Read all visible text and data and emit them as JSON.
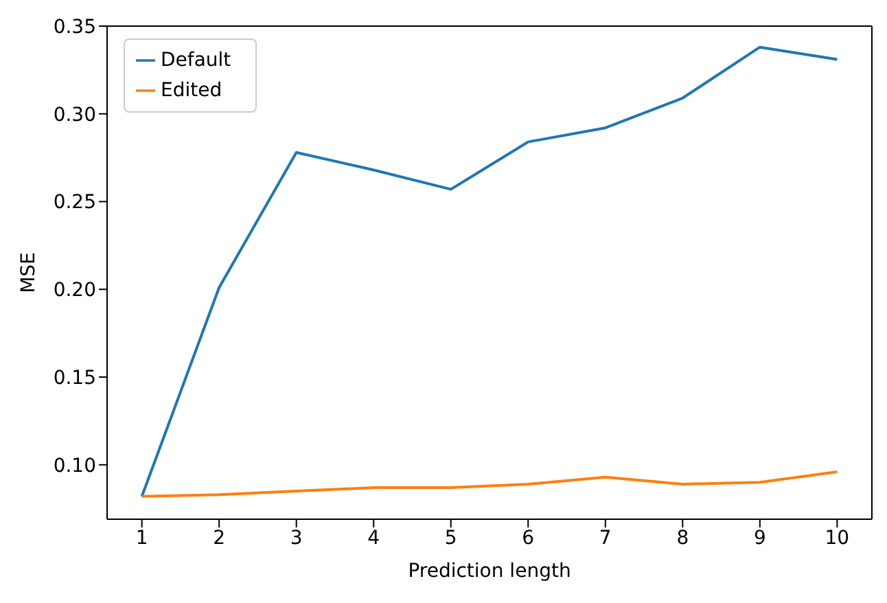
{
  "chart_data": {
    "type": "line",
    "xlabel": "Prediction length",
    "ylabel": "MSE",
    "x": [
      1,
      2,
      3,
      4,
      5,
      6,
      7,
      8,
      9,
      10
    ],
    "series": [
      {
        "name": "Default",
        "color": "#1f77b4",
        "values": [
          0.082,
          0.201,
          0.278,
          0.268,
          0.257,
          0.284,
          0.292,
          0.309,
          0.338,
          0.331
        ]
      },
      {
        "name": "Edited",
        "color": "#ff7f0e",
        "values": [
          0.082,
          0.083,
          0.085,
          0.087,
          0.087,
          0.089,
          0.093,
          0.089,
          0.09,
          0.096
        ]
      }
    ],
    "xlim": [
      0.55,
      10.45
    ],
    "xticks": [
      1,
      2,
      3,
      4,
      5,
      6,
      7,
      8,
      9,
      10
    ],
    "ylim": [
      0.069,
      0.35
    ],
    "yticks": [
      {
        "value": 0.1,
        "label": "0.10"
      },
      0.15,
      {
        "value": 0.2,
        "label": "0.20"
      },
      0.25,
      {
        "value": 0.3,
        "label": "0.30"
      },
      0.35
    ],
    "legend": "top left",
    "grid": false,
    "marker": "none",
    "line_style": "solid"
  }
}
